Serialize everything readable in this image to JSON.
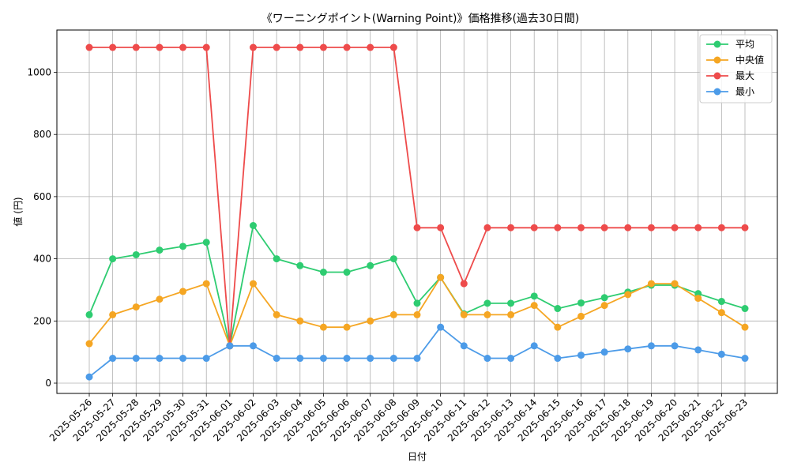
{
  "chart_data": {
    "type": "line",
    "title": "《ワーニングポイント(Warning Point)》価格推移(過去30日間)",
    "xlabel": "日付",
    "ylabel": "値 (円)",
    "ylim": [
      0,
      1100
    ],
    "yticks": [
      0,
      200,
      400,
      600,
      800,
      1000
    ],
    "grid": true,
    "legend_position": "top-right",
    "categories": [
      "2025-05-26",
      "2025-05-27",
      "2025-05-28",
      "2025-05-29",
      "2025-05-30",
      "2025-05-31",
      "2025-06-01",
      "2025-06-02",
      "2025-06-03",
      "2025-06-04",
      "2025-06-05",
      "2025-06-06",
      "2025-06-07",
      "2025-06-08",
      "2025-06-09",
      "2025-06-10",
      "2025-06-11",
      "2025-06-12",
      "2025-06-13",
      "2025-06-14",
      "2025-06-15",
      "2025-06-16",
      "2025-06-17",
      "2025-06-18",
      "2025-06-19",
      "2025-06-20",
      "2025-06-21",
      "2025-06-22",
      "2025-06-23"
    ],
    "series": [
      {
        "name": "平均",
        "color": "#2ecc71",
        "values": [
          220,
          400,
          413,
          428,
          440,
          453,
          120,
          507,
          400,
          378,
          357,
          357,
          378,
          400,
          257,
          340,
          223,
          257,
          257,
          280,
          240,
          258,
          275,
          293,
          315,
          315,
          288,
          263,
          240
        ]
      },
      {
        "name": "中央値",
        "color": "#f5a623",
        "values": [
          127,
          220,
          245,
          270,
          295,
          320,
          120,
          320,
          220,
          200,
          180,
          180,
          200,
          220,
          220,
          340,
          220,
          220,
          220,
          250,
          180,
          215,
          250,
          285,
          320,
          320,
          273,
          227,
          180
        ]
      },
      {
        "name": "最大",
        "color": "#ee4b4b",
        "values": [
          1080,
          1080,
          1080,
          1080,
          1080,
          1080,
          120,
          1080,
          1080,
          1080,
          1080,
          1080,
          1080,
          1080,
          500,
          500,
          320,
          500,
          500,
          500,
          500,
          500,
          500,
          500,
          500,
          500,
          500,
          500,
          500
        ]
      },
      {
        "name": "最小",
        "color": "#4c9be8",
        "values": [
          20,
          80,
          80,
          80,
          80,
          80,
          120,
          120,
          80,
          80,
          80,
          80,
          80,
          80,
          80,
          180,
          120,
          80,
          80,
          120,
          80,
          90,
          100,
          110,
          120,
          120,
          107,
          93,
          80
        ]
      }
    ]
  }
}
